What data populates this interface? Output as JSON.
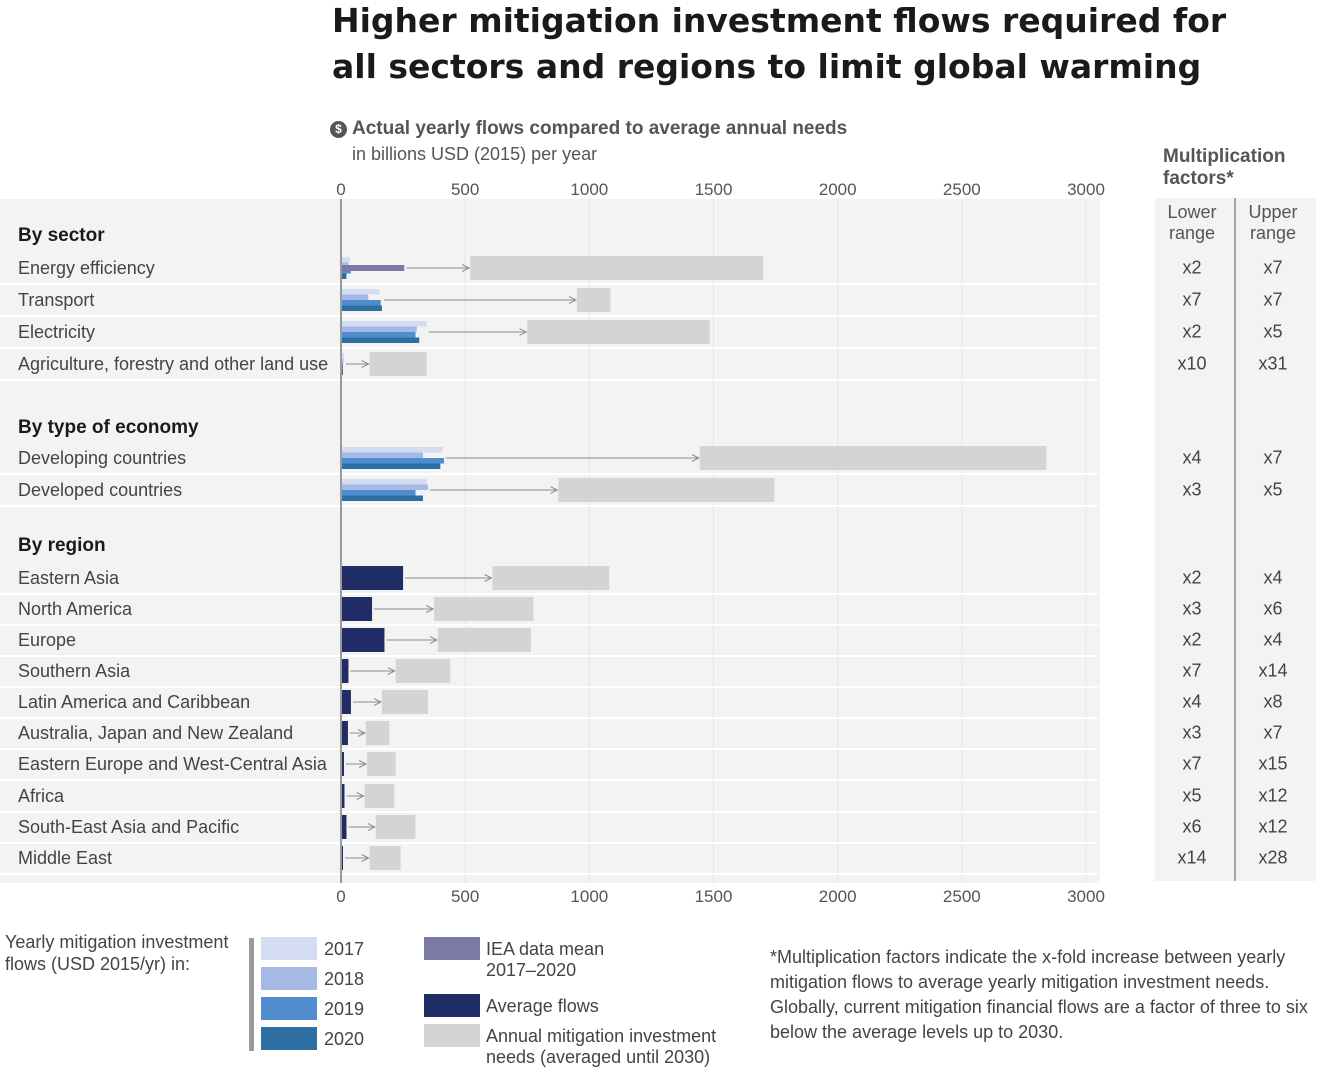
{
  "title_line1": "Higher mitigation investment flows required for",
  "title_line2": "all sectors and regions to limit global warming",
  "subtitle": "Actual yearly flows compared to average annual needs",
  "subtitle_units": "in billions USD (2015) per year",
  "dollar_icon": "$",
  "multiplication_header_line1": "Multiplication",
  "multiplication_header_line2": "factors*",
  "lower_range_label_line1": "Lower",
  "lower_range_label_line2": "range",
  "upper_range_label_line1": "Upper",
  "upper_range_label_line2": "range",
  "colors": {
    "y2017": "#d4dcf2",
    "y2018": "#a6b9e4",
    "y2019": "#4f8dce",
    "y2020": "#2d6fa3",
    "iea": "#7a7aa4",
    "average": "#202c66",
    "needs": "#d4d4d4",
    "arrow": "#8c8c8c",
    "panel": "#f3f3f3",
    "gridline": "#e4e4e4",
    "zero_axis": "#9a9a9a"
  },
  "chart_data": {
    "type": "bar",
    "orientation": "horizontal",
    "xlim": [
      0,
      3000
    ],
    "ticks": [
      "0",
      "500",
      "1000",
      "1500",
      "2000",
      "2500",
      "3000"
    ],
    "grid": true,
    "groups": [
      {
        "label": "By sector",
        "rows": [
          {
            "label": "Energy efficiency",
            "y2017": 35,
            "y2018": 30,
            "y2019": 40,
            "y2020": 22,
            "iea": 255,
            "needs": [
              520,
              1700
            ],
            "lower": "x2",
            "upper": "x7"
          },
          {
            "label": "Transport",
            "y2017": 155,
            "y2018": 110,
            "y2019": 160,
            "y2020": 165,
            "needs": [
              950,
              1085
            ],
            "lower": "x7",
            "upper": "x7"
          },
          {
            "label": "Electricity",
            "y2017": 345,
            "y2018": 305,
            "y2019": 300,
            "y2020": 315,
            "needs": [
              750,
              1485
            ],
            "lower": "x2",
            "upper": "x5"
          },
          {
            "label": "Agriculture, forestry and other land use",
            "y2017": 12,
            "y2018": 10,
            "y2019": 8,
            "y2020": 8,
            "needs": [
              115,
              345
            ],
            "lower": "x10",
            "upper": "x31"
          }
        ]
      },
      {
        "label": "By type of economy",
        "rows": [
          {
            "label": "Developing countries",
            "y2017": 410,
            "y2018": 330,
            "y2019": 415,
            "y2020": 400,
            "needs": [
              1445,
              2840
            ],
            "lower": "x4",
            "upper": "x7"
          },
          {
            "label": "Developed countries",
            "y2017": 345,
            "y2018": 350,
            "y2019": 300,
            "y2020": 330,
            "needs": [
              875,
              1745
            ],
            "lower": "x3",
            "upper": "x5"
          }
        ]
      },
      {
        "label": "By region",
        "rows": [
          {
            "label": "Eastern Asia",
            "average": 250,
            "needs": [
              610,
              1080
            ],
            "lower": "x2",
            "upper": "x4"
          },
          {
            "label": "North America",
            "average": 125,
            "needs": [
              375,
              775
            ],
            "lower": "x3",
            "upper": "x6"
          },
          {
            "label": "Europe",
            "average": 175,
            "needs": [
              390,
              765
            ],
            "lower": "x2",
            "upper": "x4"
          },
          {
            "label": "Southern Asia",
            "average": 30,
            "needs": [
              220,
              440
            ],
            "lower": "x7",
            "upper": "x14"
          },
          {
            "label": "Latin America and Caribbean",
            "average": 40,
            "needs": [
              165,
              350
            ],
            "lower": "x4",
            "upper": "x8"
          },
          {
            "label": "Australia, Japan and New Zealand",
            "average": 28,
            "needs": [
              100,
              195
            ],
            "lower": "x3",
            "upper": "x7"
          },
          {
            "label": "Eastern Europe and West-Central Asia",
            "average": 12,
            "needs": [
              105,
              220
            ],
            "lower": "x7",
            "upper": "x15"
          },
          {
            "label": "Africa",
            "average": 14,
            "needs": [
              95,
              215
            ],
            "lower": "x5",
            "upper": "x12"
          },
          {
            "label": "South-East Asia and Pacific",
            "average": 22,
            "needs": [
              140,
              300
            ],
            "lower": "x6",
            "upper": "x12"
          },
          {
            "label": "Middle East",
            "average": 8,
            "needs": [
              115,
              240
            ],
            "lower": "x14",
            "upper": "x28"
          }
        ]
      }
    ]
  },
  "legend": {
    "title": "Yearly mitigation investment flows (USD 2015/yr) in:",
    "y2017": "2017",
    "y2018": "2018",
    "y2019": "2019",
    "y2020": "2020",
    "iea_line1": "IEA data mean",
    "iea_line2": "2017–2020",
    "average": "Average flows",
    "needs_line1": "Annual mitigation investment",
    "needs_line2": "needs (averaged until 2030)"
  },
  "footnote": "*Multiplication factors indicate the x-fold increase between yearly mitigation flows to average yearly mitigation investment needs. Globally, current mitigation financial flows are a factor of three to six below the average levels up to 2030."
}
